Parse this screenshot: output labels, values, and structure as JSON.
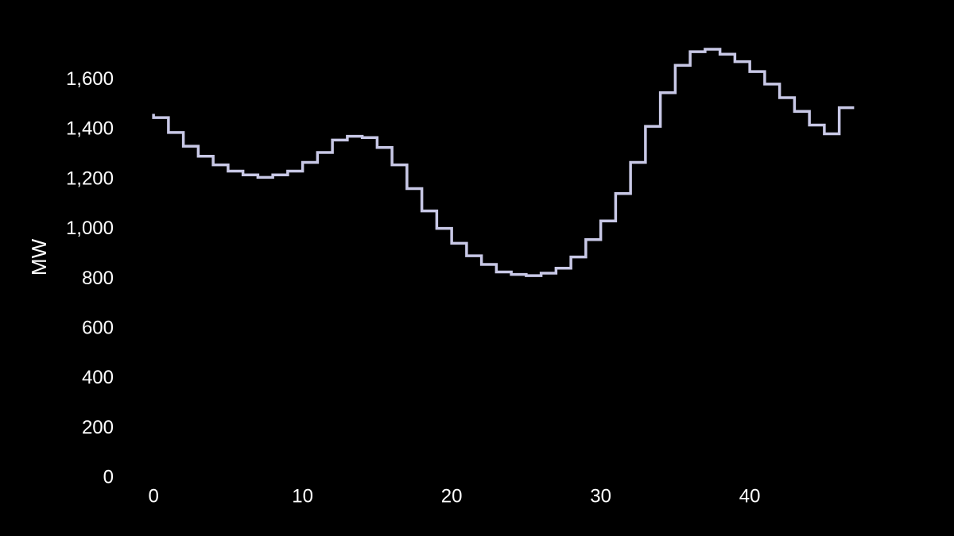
{
  "chart_data": {
    "type": "line",
    "step": "post",
    "title": "",
    "xlabel": "",
    "ylabel": "MW",
    "xlim": [
      -1.5,
      50.5
    ],
    "ylim": [
      0,
      1790
    ],
    "x_ticks": [
      0,
      10,
      20,
      30,
      40
    ],
    "x_tick_labels": [
      "0",
      "10",
      "20",
      "30",
      "40"
    ],
    "y_ticks": [
      0,
      200,
      400,
      600,
      800,
      1000,
      1200,
      1400,
      1600
    ],
    "y_tick_labels": [
      "0",
      "200",
      "400",
      "600",
      "800",
      "1,000",
      "1,200",
      "1,400",
      "1,600"
    ],
    "grid": false,
    "background": "#000000",
    "text_color": "#ffffff",
    "series": [
      {
        "color": "#c8c8e6",
        "x": [
          0,
          0,
          1,
          2,
          3,
          4,
          5,
          6,
          7,
          8,
          9,
          10,
          11,
          12,
          13,
          14,
          15,
          16,
          17,
          18,
          19,
          20,
          21,
          22,
          23,
          24,
          25,
          26,
          27,
          28,
          29,
          30,
          31,
          32,
          33,
          34,
          35,
          36,
          37,
          38,
          39,
          40,
          41,
          42,
          43,
          44,
          45,
          46,
          47
        ],
        "values": [
          1460,
          1445,
          1385,
          1330,
          1290,
          1255,
          1230,
          1215,
          1205,
          1215,
          1230,
          1265,
          1305,
          1355,
          1370,
          1365,
          1325,
          1255,
          1160,
          1070,
          1000,
          940,
          890,
          855,
          825,
          815,
          810,
          820,
          840,
          885,
          955,
          1030,
          1140,
          1265,
          1410,
          1545,
          1655,
          1710,
          1720,
          1700,
          1670,
          1630,
          1580,
          1525,
          1470,
          1415,
          1380,
          1485,
          1485
        ]
      }
    ]
  }
}
